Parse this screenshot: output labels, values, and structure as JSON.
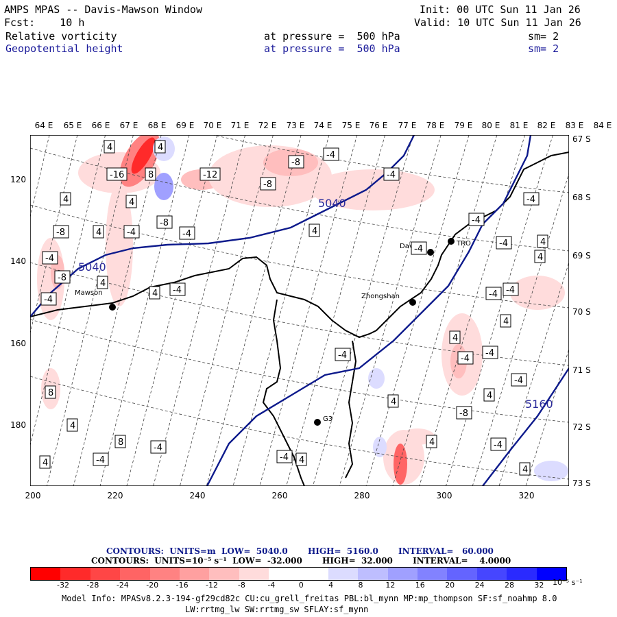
{
  "header": {
    "title": "AMPS MPAS -- Davis-Mawson Window",
    "init": "Init: 00 UTC Sun 11 Jan 26",
    "fcst": "Fcst:    10 h",
    "valid": "Valid: 10 UTC Sun 11 Jan 26",
    "field1": "Relative vorticity",
    "field1_level": "at pressure =  500 hPa",
    "field1_sm": "sm= 2",
    "field2": "Geopotential height",
    "field2_level": "at pressure =  500 hPa",
    "field2_sm": "sm= 2"
  },
  "axes": {
    "lon_labels": [
      "64 E",
      "65 E",
      "66 E",
      "67 E",
      "68 E",
      "69 E",
      "70 E",
      "71 E",
      "72 E",
      "73 E",
      "74 E",
      "75 E",
      "76 E",
      "77 E",
      "78 E",
      "79 E",
      "80 E",
      "81 E",
      "82 E",
      "83 E",
      "84 E"
    ],
    "lat_labels": [
      "67 S",
      "68 S",
      "69 S",
      "70 S",
      "71 S",
      "72 S",
      "73 S"
    ],
    "y_ticks": [
      "120",
      "140",
      "160",
      "180"
    ],
    "x_ticks": [
      "200",
      "220",
      "240",
      "260",
      "280",
      "300",
      "320"
    ]
  },
  "map": {
    "stations": [
      "Mawson",
      "Davis",
      "Zhongshan",
      "G3",
      "TRO"
    ],
    "height_labels": [
      "5040",
      "5040",
      "5160"
    ],
    "vort_labels": [
      "4",
      "4",
      "-16",
      "8",
      "-12",
      "-8",
      "-4",
      "-8",
      "-4",
      "4",
      "4",
      "-8",
      "-4",
      "-4",
      "-8",
      "-4",
      "4",
      "4",
      "-8",
      "4",
      "-4",
      "-4",
      "-4",
      "-4",
      "-4",
      "4",
      "-4",
      "4",
      "-4",
      "-4",
      "8",
      "-8",
      "-4",
      "-4",
      "4",
      "-4",
      "-4",
      "4",
      "4",
      "4",
      "-4",
      "4",
      "4",
      "-4",
      "4",
      "4",
      "8",
      "-4",
      "4",
      "-4",
      "4"
    ],
    "colors": {
      "coast": "#000000",
      "height_contour": "#0d1a8c",
      "grid": "#333333"
    }
  },
  "contour_info": {
    "height": "CONTOURS:  UNITS=m  LOW=  5040.0       HIGH=  5160.0       INTERVAL=   60.000",
    "vort": "CONTOURS:  UNITS=10⁻⁵ s⁻¹  LOW=  -32.000       HIGH=  32.000       INTERVAL=    4.0000"
  },
  "colorbar": {
    "colors": [
      "#ff0000",
      "#ff2a2a",
      "#ff4646",
      "#ff6464",
      "#ff8282",
      "#ffa0a0",
      "#ffbebe",
      "#ffdcdc",
      "#ffffff",
      "#ffffff",
      "#dcdcff",
      "#bebeff",
      "#a0a0ff",
      "#8282ff",
      "#6464ff",
      "#4646ff",
      "#2a2aff",
      "#0000ff"
    ],
    "labels": [
      "-32",
      "-28",
      "-24",
      "-20",
      "-16",
      "-12",
      "-8",
      "-4",
      "0",
      "4",
      "8",
      "12",
      "16",
      "20",
      "24",
      "28",
      "32"
    ],
    "units": "10⁻⁵ s⁻¹"
  },
  "model_info": {
    "line1": "Model Info: MPASv8.2.3-194-gf29cd82c CU:cu_grell_freitas PBL:bl_mynn MP:mp_thompson SF:sf_noahmp 8.0",
    "line2": "LW:rrtmg_lw SW:rrtmg_sw SFLAY:sf_mynn"
  }
}
